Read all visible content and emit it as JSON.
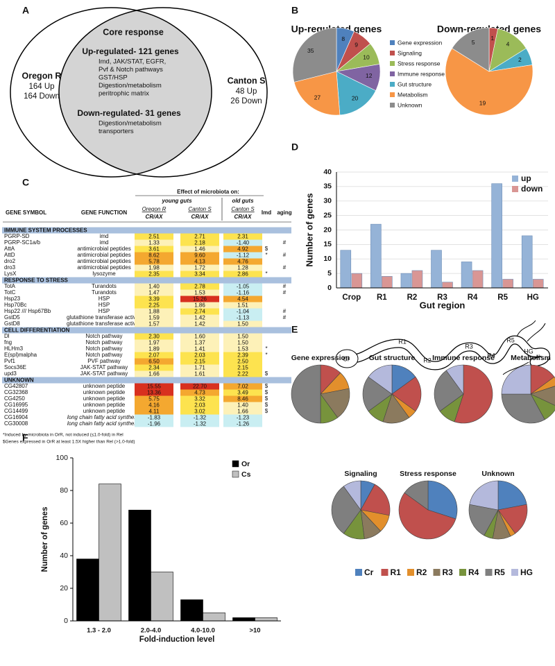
{
  "panel_labels": [
    "A",
    "B",
    "C",
    "D",
    "E",
    "F"
  ],
  "venn": {
    "core": "Core response",
    "left": {
      "name": "Oregon R",
      "counts": [
        "164 Up",
        "164 Down"
      ]
    },
    "right": {
      "name": "Canton S",
      "counts": [
        "48 Up",
        "26 Down"
      ]
    },
    "up": {
      "title": "Up-regulated- 121 genes",
      "lines": [
        "Imd, JAK/STAT, EGFR,",
        "Pvf & Notch pathways",
        "GST/HSP",
        "Digestion/metabolism",
        "peritrophic matrix"
      ]
    },
    "down": {
      "title": "Down-regulated- 31 genes",
      "lines": [
        "Digestion/metabolism",
        "transporters"
      ]
    }
  },
  "table": {
    "columns": [
      "GENE SYMBOL",
      "GENE FUNCTION"
    ],
    "effect_title": "Effect of microbiota on:",
    "groups": [
      "young guts",
      "old guts"
    ],
    "strains": [
      "Oregon R",
      "Canton S",
      "Canton S"
    ],
    "ratio_labels": [
      "CR/AX",
      "CR/AX",
      "CR/AX"
    ],
    "flag_columns": [
      "Imd",
      "aging"
    ],
    "sections": [
      {
        "title": "IMMUNE SYSTEM PROCESSES",
        "rows": [
          {
            "symbol": "PGRP-SD",
            "function": "imd",
            "values": [
              "2.51",
              "2.71",
              "2.31"
            ]
          },
          {
            "symbol": "PGRP-SC1a/b",
            "function": "imd",
            "values": [
              "1.33",
              "2.18",
              "-1.40"
            ],
            "aging": "#"
          },
          {
            "symbol": "AttA",
            "function": "antimicrobial peptides",
            "values": [
              "3.61",
              "1.46",
              "4.92"
            ],
            "imd": "$"
          },
          {
            "symbol": "AttD",
            "function": "antimicrobial peptides",
            "values": [
              "8.62",
              "9.60",
              "-1.12"
            ],
            "imd": "*",
            "aging": "#"
          },
          {
            "symbol": "dro2",
            "function": "antimicrobial peptides",
            "values": [
              "5.78",
              "4.13",
              "4.76"
            ]
          },
          {
            "symbol": "dro3",
            "function": "antimicrobial peptides",
            "values": [
              "1.98",
              "1.72",
              "1.28"
            ],
            "aging": "#"
          },
          {
            "symbol": "LysX",
            "function": "lysozyme",
            "values": [
              "2.35",
              "3.34",
              "2.86"
            ],
            "imd": "*"
          }
        ]
      },
      {
        "title": "RESPONSE TO STRESS",
        "rows": [
          {
            "symbol": "TotA",
            "function": "Turandots",
            "values": [
              "1.40",
              "2.78",
              "-1.05"
            ],
            "aging": "#"
          },
          {
            "symbol": "TotC",
            "function": "Turandots",
            "values": [
              "1.47",
              "1.53",
              "-1.16"
            ],
            "aging": "#"
          },
          {
            "symbol": "Hsp23",
            "function": "HSP",
            "values": [
              "3.39",
              "15.26",
              "4.54"
            ]
          },
          {
            "symbol": "Hsp70Bc",
            "function": "HSP",
            "values": [
              "2.25",
              "1.86",
              "1.51"
            ]
          },
          {
            "symbol": "Hsp22 /// Hsp67Bb",
            "function": "HSP",
            "values": [
              "1.88",
              "2.74",
              "-1.04"
            ],
            "aging": "#"
          },
          {
            "symbol": "GstD5",
            "function": "glutathione transferase activity",
            "values": [
              "1.59",
              "1.42",
              "-1.13"
            ],
            "aging": "#"
          },
          {
            "symbol": "GstD8",
            "function": "glutathione transferase activity",
            "values": [
              "1.57",
              "1.42",
              "1.50"
            ]
          }
        ]
      },
      {
        "title": "CELL DIFFERENTIATION",
        "rows": [
          {
            "symbol": "Dl",
            "function": "Notch pathway",
            "values": [
              "2.30",
              "1.60",
              "1.50"
            ]
          },
          {
            "symbol": "fng",
            "function": "Notch pathway",
            "values": [
              "1.97",
              "1.37",
              "1.50"
            ]
          },
          {
            "symbol": "HLHm3",
            "function": "Notch pathway",
            "values": [
              "1.89",
              "1.41",
              "1.53"
            ],
            "imd": "*"
          },
          {
            "symbol": "E(spl)malpha",
            "function": "Notch pathway",
            "values": [
              "2.07",
              "2.03",
              "2.39"
            ],
            "imd": "*"
          },
          {
            "symbol": "Pvf1",
            "function": "PVF pathway",
            "values": [
              "6.50",
              "2.15",
              "2.50"
            ]
          },
          {
            "symbol": "Socs36E",
            "function": "JAK-STAT pathway",
            "values": [
              "2.34",
              "1.71",
              "2.15"
            ]
          },
          {
            "symbol": "upd3",
            "function": "JAK-STAT pathway",
            "values": [
              "1.66",
              "1.61",
              "2.22"
            ],
            "imd": "$"
          }
        ]
      },
      {
        "title": "UNKNOWN",
        "rows": [
          {
            "symbol": "CG42807",
            "function": "unknown peptide",
            "values": [
              "15.55",
              "22.70",
              "7.02"
            ],
            "imd": "$"
          },
          {
            "symbol": "CG32368",
            "function": "unknown peptide",
            "values": [
              "13.36",
              "4.73",
              "3.49"
            ],
            "imd": "$"
          },
          {
            "symbol": "CG4250",
            "function": "unknown peptide",
            "values": [
              "5.75",
              "3.32",
              "8.46"
            ],
            "imd": "$"
          },
          {
            "symbol": "CG16995",
            "function": "unknown peptide",
            "values": [
              "4.16",
              "2.03",
              "1.40"
            ],
            "imd": "$"
          },
          {
            "symbol": "CG14499",
            "function": "unknown peptide",
            "values": [
              "4.11",
              "3.02",
              "1.66"
            ],
            "imd": "$"
          },
          {
            "symbol": "CG16904",
            "function": "long chain fatty acid synthesis",
            "italic": true,
            "values": [
              "-1.83",
              "-1.32",
              "-1.23"
            ]
          },
          {
            "symbol": "CG30008",
            "function": "long chain fatty acid synthesis",
            "italic": true,
            "values": [
              "-1.96",
              "-1.32",
              "-1.26"
            ]
          }
        ]
      }
    ],
    "footnotes": [
      "*Induced by microbiota in OrR, not induced (≤1.0-fold) in Rel",
      "$Genes expressed in OrR at least 1.5X higher than Rel (>1.0-fold)"
    ]
  },
  "gut_diagram": {
    "labels": [
      "Cr",
      "R1",
      "R2",
      "R3",
      "R4",
      "R5",
      "HG"
    ]
  },
  "chart_data": [
    {
      "type": "pie",
      "legend": "right",
      "categories": [
        "Gene expression",
        "Signaling",
        "Stress response",
        "Immune response",
        "Gut structure",
        "Metabolism",
        "Unknown"
      ],
      "colors": [
        "#4f81bd",
        "#c0504d",
        "#9bbb59",
        "#8064a2",
        "#4bacc6",
        "#f79646",
        "#8c8c8c"
      ],
      "pies": [
        {
          "title": "Up-regulated genes",
          "values": [
            8,
            9,
            10,
            12,
            20,
            27,
            35
          ]
        },
        {
          "title": "Down-regulated genes",
          "values": [
            0,
            1,
            4,
            0,
            2,
            19,
            5
          ]
        }
      ]
    },
    {
      "type": "bar",
      "categories": [
        "Crop",
        "R1",
        "R2",
        "R3",
        "R4",
        "R5",
        "HG"
      ],
      "series": [
        {
          "name": "up",
          "color": "#95b3d7",
          "values": [
            13,
            22,
            5,
            13,
            9,
            36,
            18
          ]
        },
        {
          "name": "down",
          "color": "#d99694",
          "values": [
            5,
            4,
            6,
            2,
            6,
            3,
            3
          ]
        }
      ],
      "ylim": [
        0,
        40
      ],
      "yticks": [
        0,
        5,
        10,
        15,
        20,
        25,
        30,
        35,
        40
      ],
      "grid": true,
      "ylabel": "Number of genes",
      "xlabel": "Gut region",
      "legend": "upper right"
    },
    {
      "type": "pie",
      "legend": "bottom",
      "categories": [
        "Cr",
        "R1",
        "R2",
        "R3",
        "R4",
        "R5",
        "HG"
      ],
      "colors": [
        "#4f81bd",
        "#c0504d",
        "#e28f2c",
        "#8b7a5e",
        "#77933c",
        "#7f7f7f",
        "#b4b9dc"
      ],
      "pies": [
        {
          "title": "Gene expression",
          "values": [
            0,
            12,
            10,
            18,
            10,
            50,
            0
          ]
        },
        {
          "title": "Gut structure",
          "values": [
            15,
            20,
            5,
            15,
            10,
            20,
            15
          ]
        },
        {
          "title": "Immune response",
          "values": [
            0,
            55,
            0,
            0,
            10,
            25,
            10
          ]
        },
        {
          "title": "Metabolism",
          "values": [
            0,
            15,
            5,
            12,
            10,
            33,
            25
          ]
        },
        {
          "title": "Signaling",
          "values": [
            8,
            20,
            10,
            10,
            12,
            30,
            10
          ]
        },
        {
          "title": "Stress response",
          "values": [
            30,
            55,
            0,
            0,
            0,
            15,
            0
          ]
        },
        {
          "title": "Unknown",
          "values": [
            22,
            18,
            3,
            10,
            5,
            20,
            22
          ]
        }
      ]
    },
    {
      "type": "bar",
      "categories": [
        "1.3 - 2.0",
        "2.0-4.0",
        "4.0-10.0",
        ">10"
      ],
      "series": [
        {
          "name": "Or",
          "color": "#000000",
          "values": [
            38,
            68,
            13,
            2
          ]
        },
        {
          "name": "Cs",
          "color": "#c0c0c0",
          "values": [
            84,
            30,
            5,
            2
          ]
        }
      ],
      "ylim": [
        0,
        100
      ],
      "yticks": [
        0,
        20,
        40,
        60,
        80,
        100
      ],
      "grid": false,
      "ylabel": "Number of genes",
      "xlabel": "Fold-induction level",
      "legend": "upper right"
    }
  ]
}
